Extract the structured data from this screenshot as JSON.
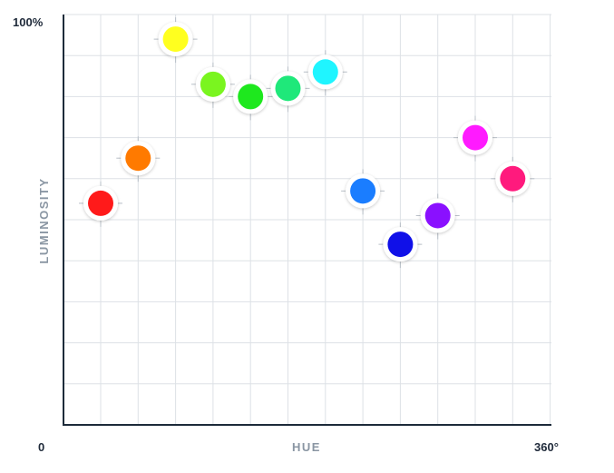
{
  "chart_data": {
    "type": "scatter",
    "xlabel": "HUE",
    "ylabel": "LUMINOSITY",
    "x_min_label": "0",
    "x_max_label": "360°",
    "y_max_label": "100%",
    "xlim": [
      0,
      360
    ],
    "ylim": [
      0,
      100
    ],
    "grid": true,
    "points": [
      {
        "x": 0,
        "y": 54,
        "color": "#ff1a1a"
      },
      {
        "x": 30,
        "y": 65,
        "color": "#ff7a00"
      },
      {
        "x": 60,
        "y": 94,
        "color": "#ffff1f"
      },
      {
        "x": 90,
        "y": 83,
        "color": "#7af51f"
      },
      {
        "x": 120,
        "y": 80,
        "color": "#1ee81e"
      },
      {
        "x": 150,
        "y": 82,
        "color": "#1fe87a"
      },
      {
        "x": 180,
        "y": 86,
        "color": "#1ff5ff"
      },
      {
        "x": 210,
        "y": 57,
        "color": "#1a7dff"
      },
      {
        "x": 240,
        "y": 44,
        "color": "#1010e8"
      },
      {
        "x": 270,
        "y": 51,
        "color": "#8a10ff"
      },
      {
        "x": 300,
        "y": 70,
        "color": "#ff1aff"
      },
      {
        "x": 330,
        "y": 60,
        "color": "#ff1a7d"
      }
    ]
  }
}
